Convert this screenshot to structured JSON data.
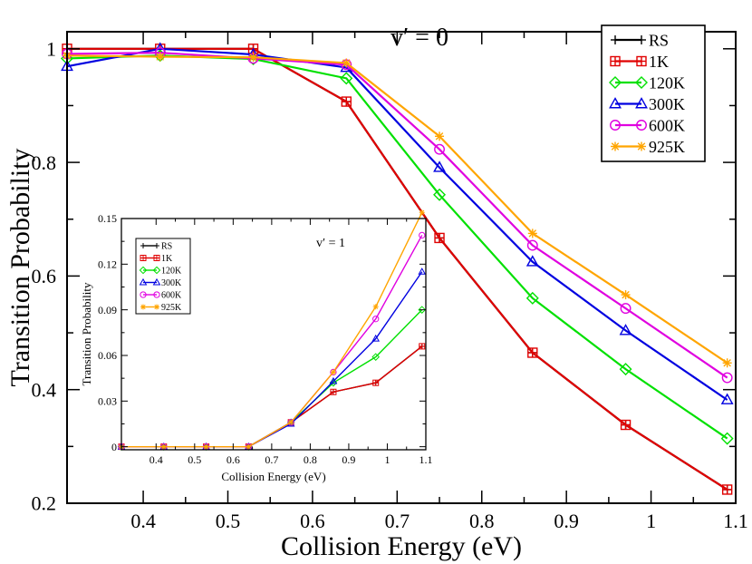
{
  "chart_data": [
    {
      "type": "line",
      "title": "v′ = 0",
      "xlabel": "Collision Energy (eV)",
      "ylabel": "Transition Probability",
      "xlim": [
        0.31,
        1.1
      ],
      "ylim": [
        0.2,
        1.03
      ],
      "x_ticks": [
        0.4,
        0.5,
        0.6,
        0.7,
        0.8,
        0.9,
        1.0,
        1.1
      ],
      "x_tick_labels": [
        "0.4",
        "0.5",
        "0.6",
        "0.7",
        "0.8",
        "0.9",
        "1",
        "1.1"
      ],
      "y_ticks": [
        0.2,
        0.4,
        0.6,
        0.8,
        1.0
      ],
      "y_tick_labels": [
        "0.2",
        "0.4",
        "0.6",
        "0.8",
        "1"
      ],
      "legend_position": "top-right",
      "x": [
        0.31,
        0.42,
        0.53,
        0.64,
        0.75,
        0.86,
        0.97,
        1.09
      ],
      "series": [
        {
          "name": "RS",
          "color": "#000000",
          "marker": "plus",
          "values": [
            1.0,
            1.0,
            1.0,
            0.907,
            0.667,
            0.465,
            0.338,
            0.224
          ]
        },
        {
          "name": "1K",
          "color": "#e00000",
          "marker": "square",
          "values": [
            1.0,
            1.0,
            1.0,
            0.907,
            0.667,
            0.465,
            0.338,
            0.224
          ]
        },
        {
          "name": "120K",
          "color": "#00e000",
          "marker": "diamond",
          "values": [
            0.983,
            0.988,
            0.982,
            0.948,
            0.743,
            0.561,
            0.436,
            0.314
          ]
        },
        {
          "name": "300K",
          "color": "#0000e0",
          "marker": "triangle",
          "values": [
            0.969,
            1.0,
            0.99,
            0.967,
            0.791,
            0.625,
            0.504,
            0.382
          ]
        },
        {
          "name": "600K",
          "color": "#e000e0",
          "marker": "circle",
          "values": [
            0.991,
            0.993,
            0.983,
            0.972,
            0.823,
            0.654,
            0.543,
            0.421
          ]
        },
        {
          "name": "925K",
          "color": "#ffa500",
          "marker": "star",
          "values": [
            0.988,
            0.986,
            0.985,
            0.975,
            0.846,
            0.675,
            0.567,
            0.447
          ]
        }
      ]
    },
    {
      "type": "line",
      "title": "v′ = 1",
      "xlabel": "Collision Energy (eV)",
      "ylabel": "Transition Probability",
      "xlim": [
        0.31,
        1.1
      ],
      "ylim": [
        -0.002,
        0.15
      ],
      "x_ticks": [
        0.4,
        0.5,
        0.6,
        0.7,
        0.8,
        0.9,
        1.0,
        1.1
      ],
      "x_tick_labels": [
        "0.4",
        "0.5",
        "0.6",
        "0.7",
        "0.8",
        "0.9",
        "1",
        "1.1"
      ],
      "y_ticks": [
        0.0,
        0.03,
        0.06,
        0.09,
        0.12,
        0.15
      ],
      "y_tick_labels": [
        "0",
        "0.03",
        "0.06",
        "0.09",
        "0.12",
        "0.15"
      ],
      "legend_position": "top-left",
      "x": [
        0.31,
        0.42,
        0.53,
        0.64,
        0.75,
        0.86,
        0.97,
        1.09
      ],
      "series": [
        {
          "name": "RS",
          "color": "#000000",
          "marker": "plus",
          "values": [
            0.0,
            0.0,
            0.0,
            0.0,
            0.016,
            0.036,
            0.042,
            0.066
          ]
        },
        {
          "name": "1K",
          "color": "#e00000",
          "marker": "square",
          "values": [
            0.0,
            0.0,
            0.0,
            0.0,
            0.016,
            0.036,
            0.042,
            0.066
          ]
        },
        {
          "name": "120K",
          "color": "#00e000",
          "marker": "diamond",
          "values": [
            0.0,
            0.0,
            0.0,
            0.0,
            0.016,
            0.042,
            0.059,
            0.09
          ]
        },
        {
          "name": "300K",
          "color": "#0000e0",
          "marker": "triangle",
          "values": [
            0.0,
            0.0,
            0.0,
            0.0,
            0.015,
            0.043,
            0.071,
            0.115
          ]
        },
        {
          "name": "600K",
          "color": "#e000e0",
          "marker": "circle",
          "values": [
            0.0,
            0.0,
            0.0,
            0.0,
            0.016,
            0.049,
            0.084,
            0.139
          ]
        },
        {
          "name": "925K",
          "color": "#ffa500",
          "marker": "star",
          "values": [
            0.0,
            0.0,
            0.0,
            0.0,
            0.016,
            0.049,
            0.092,
            0.154
          ]
        }
      ]
    }
  ]
}
